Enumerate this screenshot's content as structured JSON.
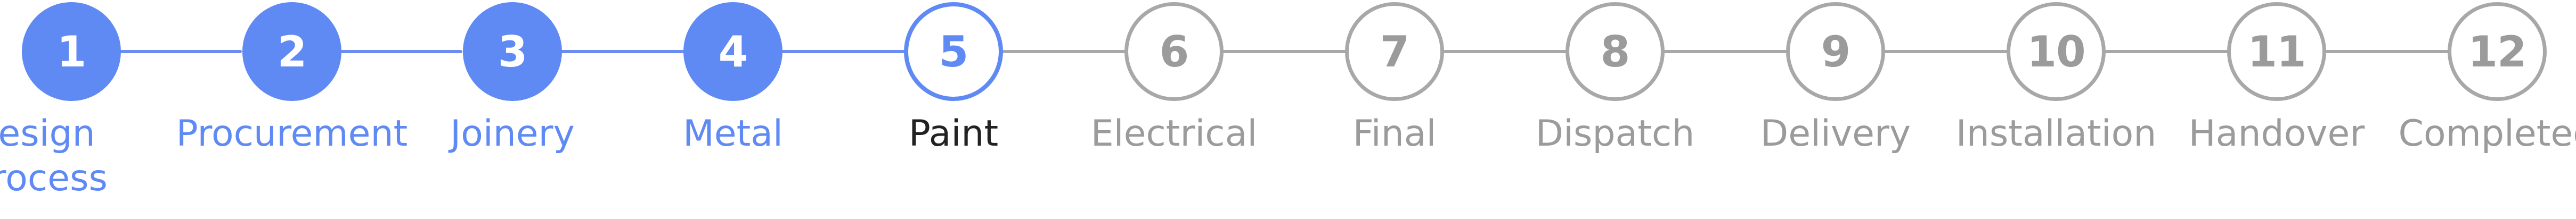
{
  "steps": [
    {
      "number": "1",
      "label": "Design Process",
      "state": "done"
    },
    {
      "number": "2",
      "label": "Procurement",
      "state": "done"
    },
    {
      "number": "3",
      "label": "Joinery",
      "state": "done"
    },
    {
      "number": "4",
      "label": "Metal",
      "state": "done"
    },
    {
      "number": "5",
      "label": "Paint",
      "state": "current"
    },
    {
      "number": "6",
      "label": "Electrical",
      "state": "todo"
    },
    {
      "number": "7",
      "label": "Final",
      "state": "todo"
    },
    {
      "number": "8",
      "label": "Dispatch",
      "state": "todo"
    },
    {
      "number": "9",
      "label": "Delivery",
      "state": "todo"
    },
    {
      "number": "10",
      "label": "Installation",
      "state": "todo"
    },
    {
      "number": "11",
      "label": "Handover",
      "state": "todo"
    },
    {
      "number": "12",
      "label": "Completed",
      "state": "todo"
    }
  ],
  "colors": {
    "accent": "#5f8af4",
    "inactive": "#9b9b9b",
    "current_label": "#222222"
  }
}
